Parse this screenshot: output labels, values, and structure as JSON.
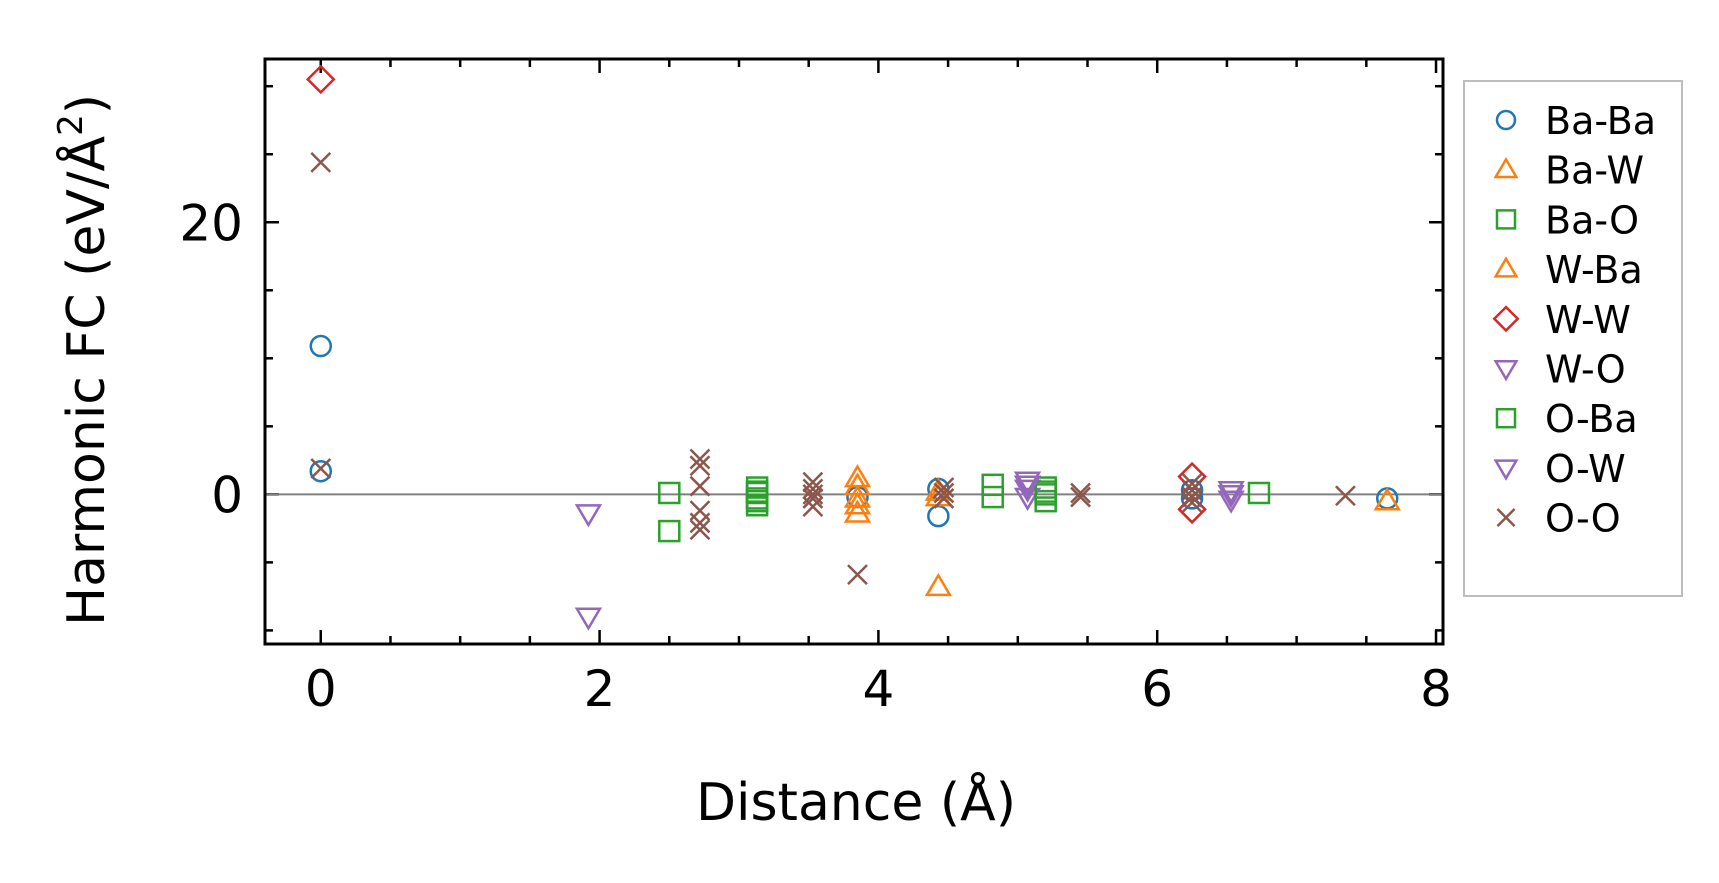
{
  "chart_data": {
    "type": "scatter",
    "title": "",
    "xlabel": "Distance (Å)",
    "ylabel": "Harmonic FC (eV/Å²)",
    "ylabel_main": "Harmonic FC (eV/Å",
    "ylabel_sup": "2",
    "ylabel_close": ")",
    "xlim": [
      -0.4,
      8.05
    ],
    "ylim": [
      -11,
      32
    ],
    "xticks": [
      0,
      2,
      4,
      6,
      8
    ],
    "xtick_labels": [
      "0",
      "2",
      "4",
      "6",
      "8"
    ],
    "yticks": [
      0,
      20
    ],
    "ytick_labels": [
      "0",
      "20"
    ],
    "x_minor_step": 0.5,
    "y_minor_step": 5,
    "zero_line": true,
    "grid": false,
    "legend_position": "right",
    "series": [
      {
        "name": "Ba-Ba",
        "marker": "circle",
        "color": "#1f77b4",
        "points": [
          [
            0,
            10.9
          ],
          [
            0,
            1.7
          ],
          [
            3.85,
            -0.2
          ],
          [
            4.43,
            0.4
          ],
          [
            4.43,
            -1.6
          ],
          [
            6.25,
            0.3
          ],
          [
            6.25,
            -0.3
          ],
          [
            7.65,
            -0.3
          ]
        ]
      },
      {
        "name": "Ba-W",
        "marker": "triangle-up",
        "color": "#ff7f0e",
        "points": [
          [
            3.85,
            1.2
          ],
          [
            3.85,
            -0.3
          ],
          [
            3.85,
            -1.4
          ],
          [
            4.43,
            0.2
          ],
          [
            4.43,
            -6.8
          ],
          [
            7.65,
            -0.5
          ]
        ]
      },
      {
        "name": "Ba-O",
        "marker": "square",
        "color": "#2ca02c",
        "points": [
          [
            2.5,
            0.1
          ],
          [
            2.5,
            -2.7
          ],
          [
            3.13,
            0.5
          ],
          [
            3.13,
            0.1
          ],
          [
            3.13,
            -0.3
          ],
          [
            3.13,
            -0.8
          ],
          [
            4.82,
            0.7
          ],
          [
            4.82,
            -0.2
          ],
          [
            5.2,
            0.5
          ],
          [
            5.2,
            0.0
          ],
          [
            5.2,
            -0.5
          ],
          [
            6.73,
            0.1
          ]
        ]
      },
      {
        "name": "W-Ba",
        "marker": "triangle-up",
        "color": "#ff7f0e",
        "points": [
          [
            3.85,
            0.6
          ],
          [
            3.85,
            -0.8
          ],
          [
            4.43,
            -0.2
          ]
        ]
      },
      {
        "name": "W-W",
        "marker": "diamond",
        "color": "#d62728",
        "points": [
          [
            0,
            30.5
          ],
          [
            6.25,
            1.3
          ],
          [
            6.25,
            -1.1
          ]
        ]
      },
      {
        "name": "W-O",
        "marker": "triangle-down",
        "color": "#9467bd",
        "points": [
          [
            1.92,
            -1.4
          ],
          [
            1.92,
            -9.0
          ],
          [
            5.07,
            1.0
          ],
          [
            5.07,
            0.4
          ],
          [
            5.07,
            -0.2
          ],
          [
            6.53,
            0.3
          ],
          [
            6.53,
            -0.4
          ]
        ]
      },
      {
        "name": "O-Ba",
        "marker": "square",
        "color": "#2ca02c",
        "points": [
          [
            3.13,
            0.2
          ],
          [
            3.13,
            -0.5
          ],
          [
            5.2,
            0.2
          ]
        ]
      },
      {
        "name": "O-W",
        "marker": "triangle-down",
        "color": "#9467bd",
        "points": [
          [
            5.07,
            0.7
          ],
          [
            6.53,
            0.0
          ]
        ]
      },
      {
        "name": "O-O",
        "marker": "x",
        "color": "#8c564b",
        "points": [
          [
            0,
            24.4
          ],
          [
            0,
            1.9
          ],
          [
            2.72,
            2.6
          ],
          [
            2.72,
            2.1
          ],
          [
            2.72,
            0.6
          ],
          [
            2.72,
            -1.2
          ],
          [
            2.72,
            -2.1
          ],
          [
            2.72,
            -2.6
          ],
          [
            3.53,
            0.9
          ],
          [
            3.53,
            0.4
          ],
          [
            3.53,
            0.0
          ],
          [
            3.53,
            -0.3
          ],
          [
            3.53,
            -0.9
          ],
          [
            3.85,
            -5.9
          ],
          [
            4.47,
            0.5
          ],
          [
            4.47,
            0.1
          ],
          [
            4.47,
            -0.3
          ],
          [
            5.45,
            0.1
          ],
          [
            5.45,
            -0.2
          ],
          [
            6.25,
            0.8
          ],
          [
            6.25,
            0.3
          ],
          [
            6.25,
            -0.2
          ],
          [
            6.25,
            -0.6
          ],
          [
            7.35,
            -0.1
          ]
        ]
      }
    ]
  }
}
